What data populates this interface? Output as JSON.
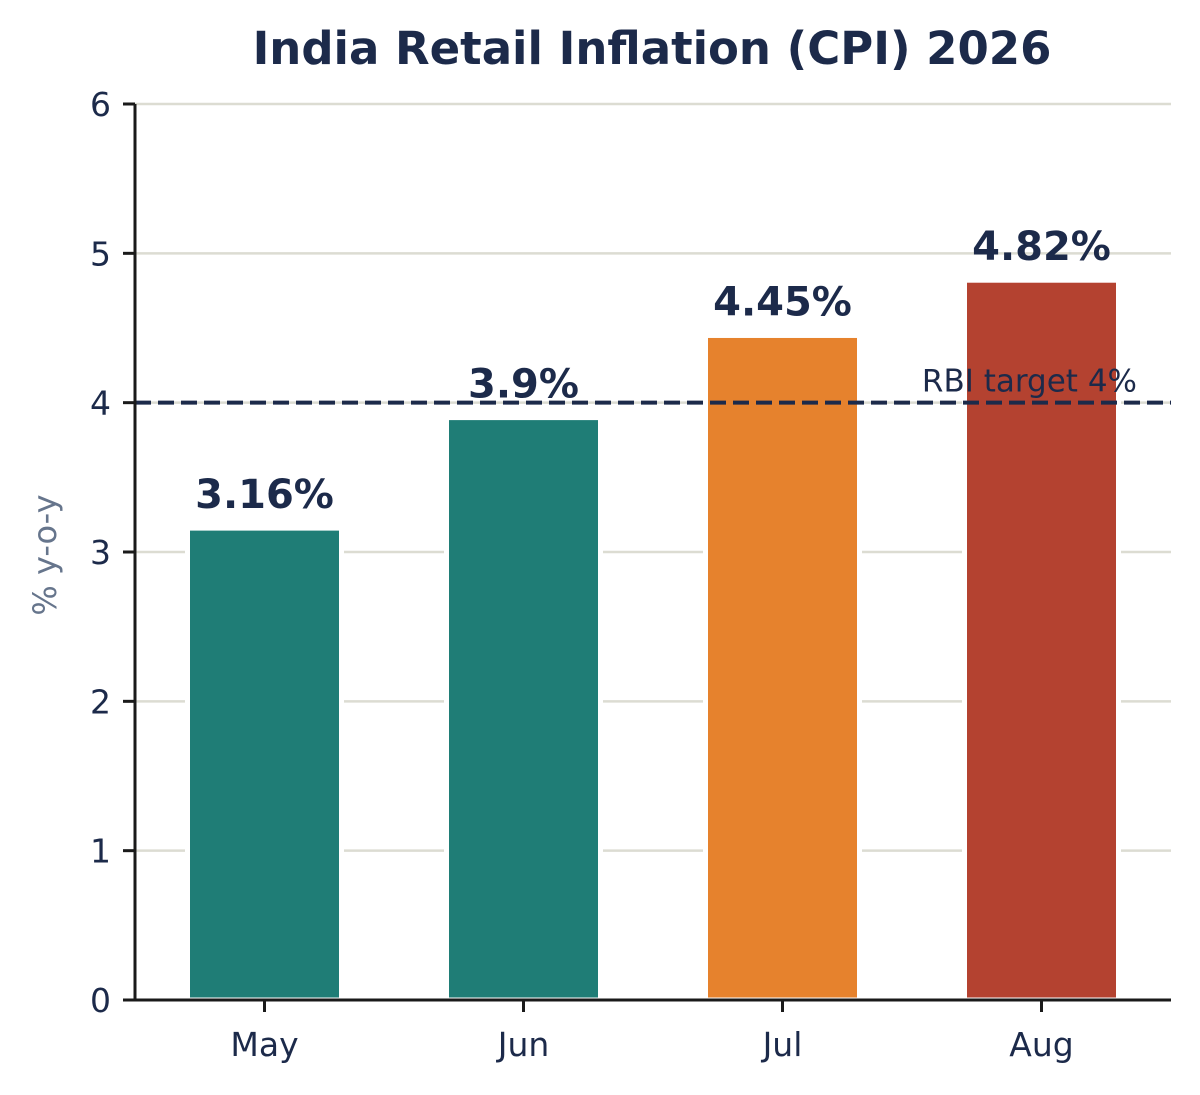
{
  "chart_data": {
    "type": "bar",
    "title": "India Retail Inflation (CPI) 2026",
    "xlabel": "",
    "ylabel": "% y-o-y",
    "categories": [
      "May",
      "Jun",
      "Jul",
      "Aug"
    ],
    "values": [
      3.16,
      3.9,
      4.45,
      4.82
    ],
    "value_labels": [
      "3.16%",
      "3.9%",
      "4.45%",
      "4.82%"
    ],
    "bar_colors": [
      "#1f7d76",
      "#1f7d76",
      "#e6822d",
      "#b44230"
    ],
    "ylim": [
      0,
      6
    ],
    "yticks": [
      0,
      1,
      2,
      3,
      4,
      5,
      6
    ],
    "ytick_labels": [
      "0",
      "1",
      "2",
      "3",
      "4",
      "5",
      "6"
    ],
    "grid": true,
    "grid_axis": "y",
    "reference_line": {
      "value": 4,
      "label": "RBI target 4%",
      "style": "dashed",
      "color": "#1c2a4a"
    },
    "colors": {
      "text": "#1c2a4a",
      "ylabel": "#66758c",
      "grid": "#dcdcd2",
      "axis": "#1a1a1a"
    }
  }
}
